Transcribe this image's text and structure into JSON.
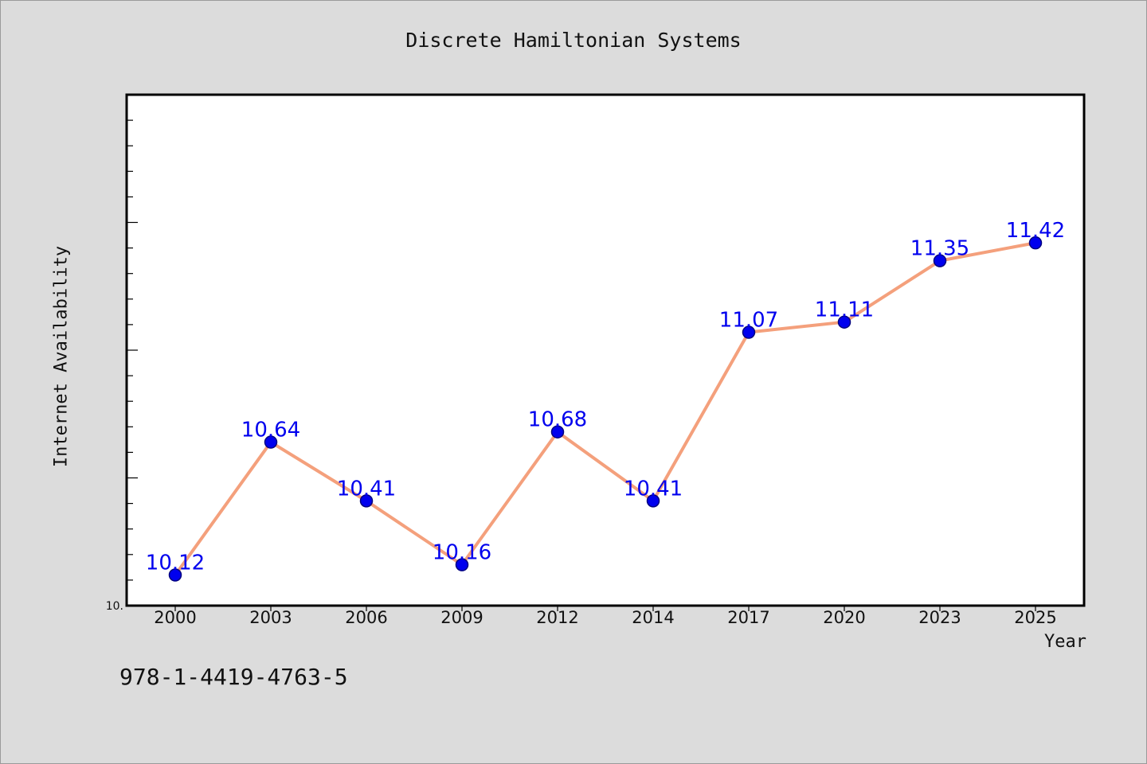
{
  "chart_data": {
    "type": "line",
    "title": "Discrete Hamiltonian Systems",
    "xlabel": "Year",
    "ylabel": "Internet Availability",
    "categories": [
      "2000",
      "2003",
      "2006",
      "2009",
      "2012",
      "2014",
      "2017",
      "2020",
      "2023",
      "2025"
    ],
    "series": [
      {
        "values": [
          10.12,
          10.64,
          10.41,
          10.16,
          10.68,
          10.41,
          11.07,
          11.11,
          11.35,
          11.42
        ]
      }
    ],
    "data_labels": [
      "10.12",
      "10.64",
      "10.41",
      "10.16",
      "10.68",
      "10.41",
      "11.07",
      "11.11",
      "11.35",
      "11.42"
    ],
    "y_tick_label": "10.",
    "ylim": [
      10.0,
      12.0
    ],
    "grid": false,
    "legend": "none",
    "colors": {
      "line": "#f4a07c",
      "marker": "#0000ee",
      "marker_edge": "#000080",
      "label": "#0000ee"
    }
  },
  "footer": {
    "isbn": "978-1-4419-4763-5"
  }
}
